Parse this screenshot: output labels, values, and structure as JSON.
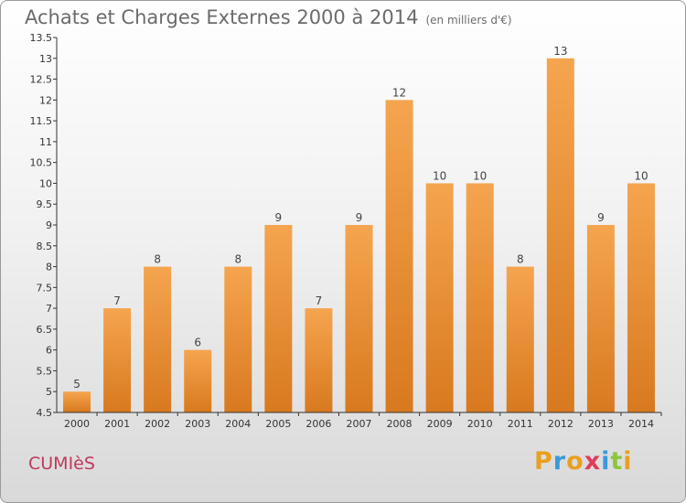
{
  "header": {
    "title": "Achats et Charges Externes 2000 à 2014",
    "unit": "(en milliers d'€)"
  },
  "footer": {
    "commune": "CUMIèS",
    "brand": "Proxiti"
  },
  "colors": {
    "bar_top": "#f5a54e",
    "bar_bottom": "#d8791f",
    "axis": "#333333",
    "grid": "#c8c8c8",
    "commune": "#c0395b"
  },
  "chart_data": {
    "type": "bar",
    "title": "Achats et Charges Externes 2000 à 2014",
    "subtitle": "(en milliers d'€)",
    "categories": [
      "2000",
      "2001",
      "2002",
      "2003",
      "2004",
      "2005",
      "2006",
      "2007",
      "2008",
      "2009",
      "2010",
      "2011",
      "2012",
      "2013",
      "2014"
    ],
    "values": [
      5,
      7,
      8,
      6,
      8,
      9,
      7,
      9,
      12,
      10,
      10,
      8,
      13,
      9,
      10
    ],
    "ylim": [
      4.5,
      13.5
    ],
    "yticks": [
      "4.5",
      "5",
      "5.5",
      "6",
      "6.5",
      "7",
      "7.5",
      "8",
      "8.5",
      "9",
      "9.5",
      "10",
      "10.5",
      "11",
      "11.5",
      "12",
      "12.5",
      "13",
      "13.5"
    ],
    "grid": false,
    "legend": "none"
  }
}
